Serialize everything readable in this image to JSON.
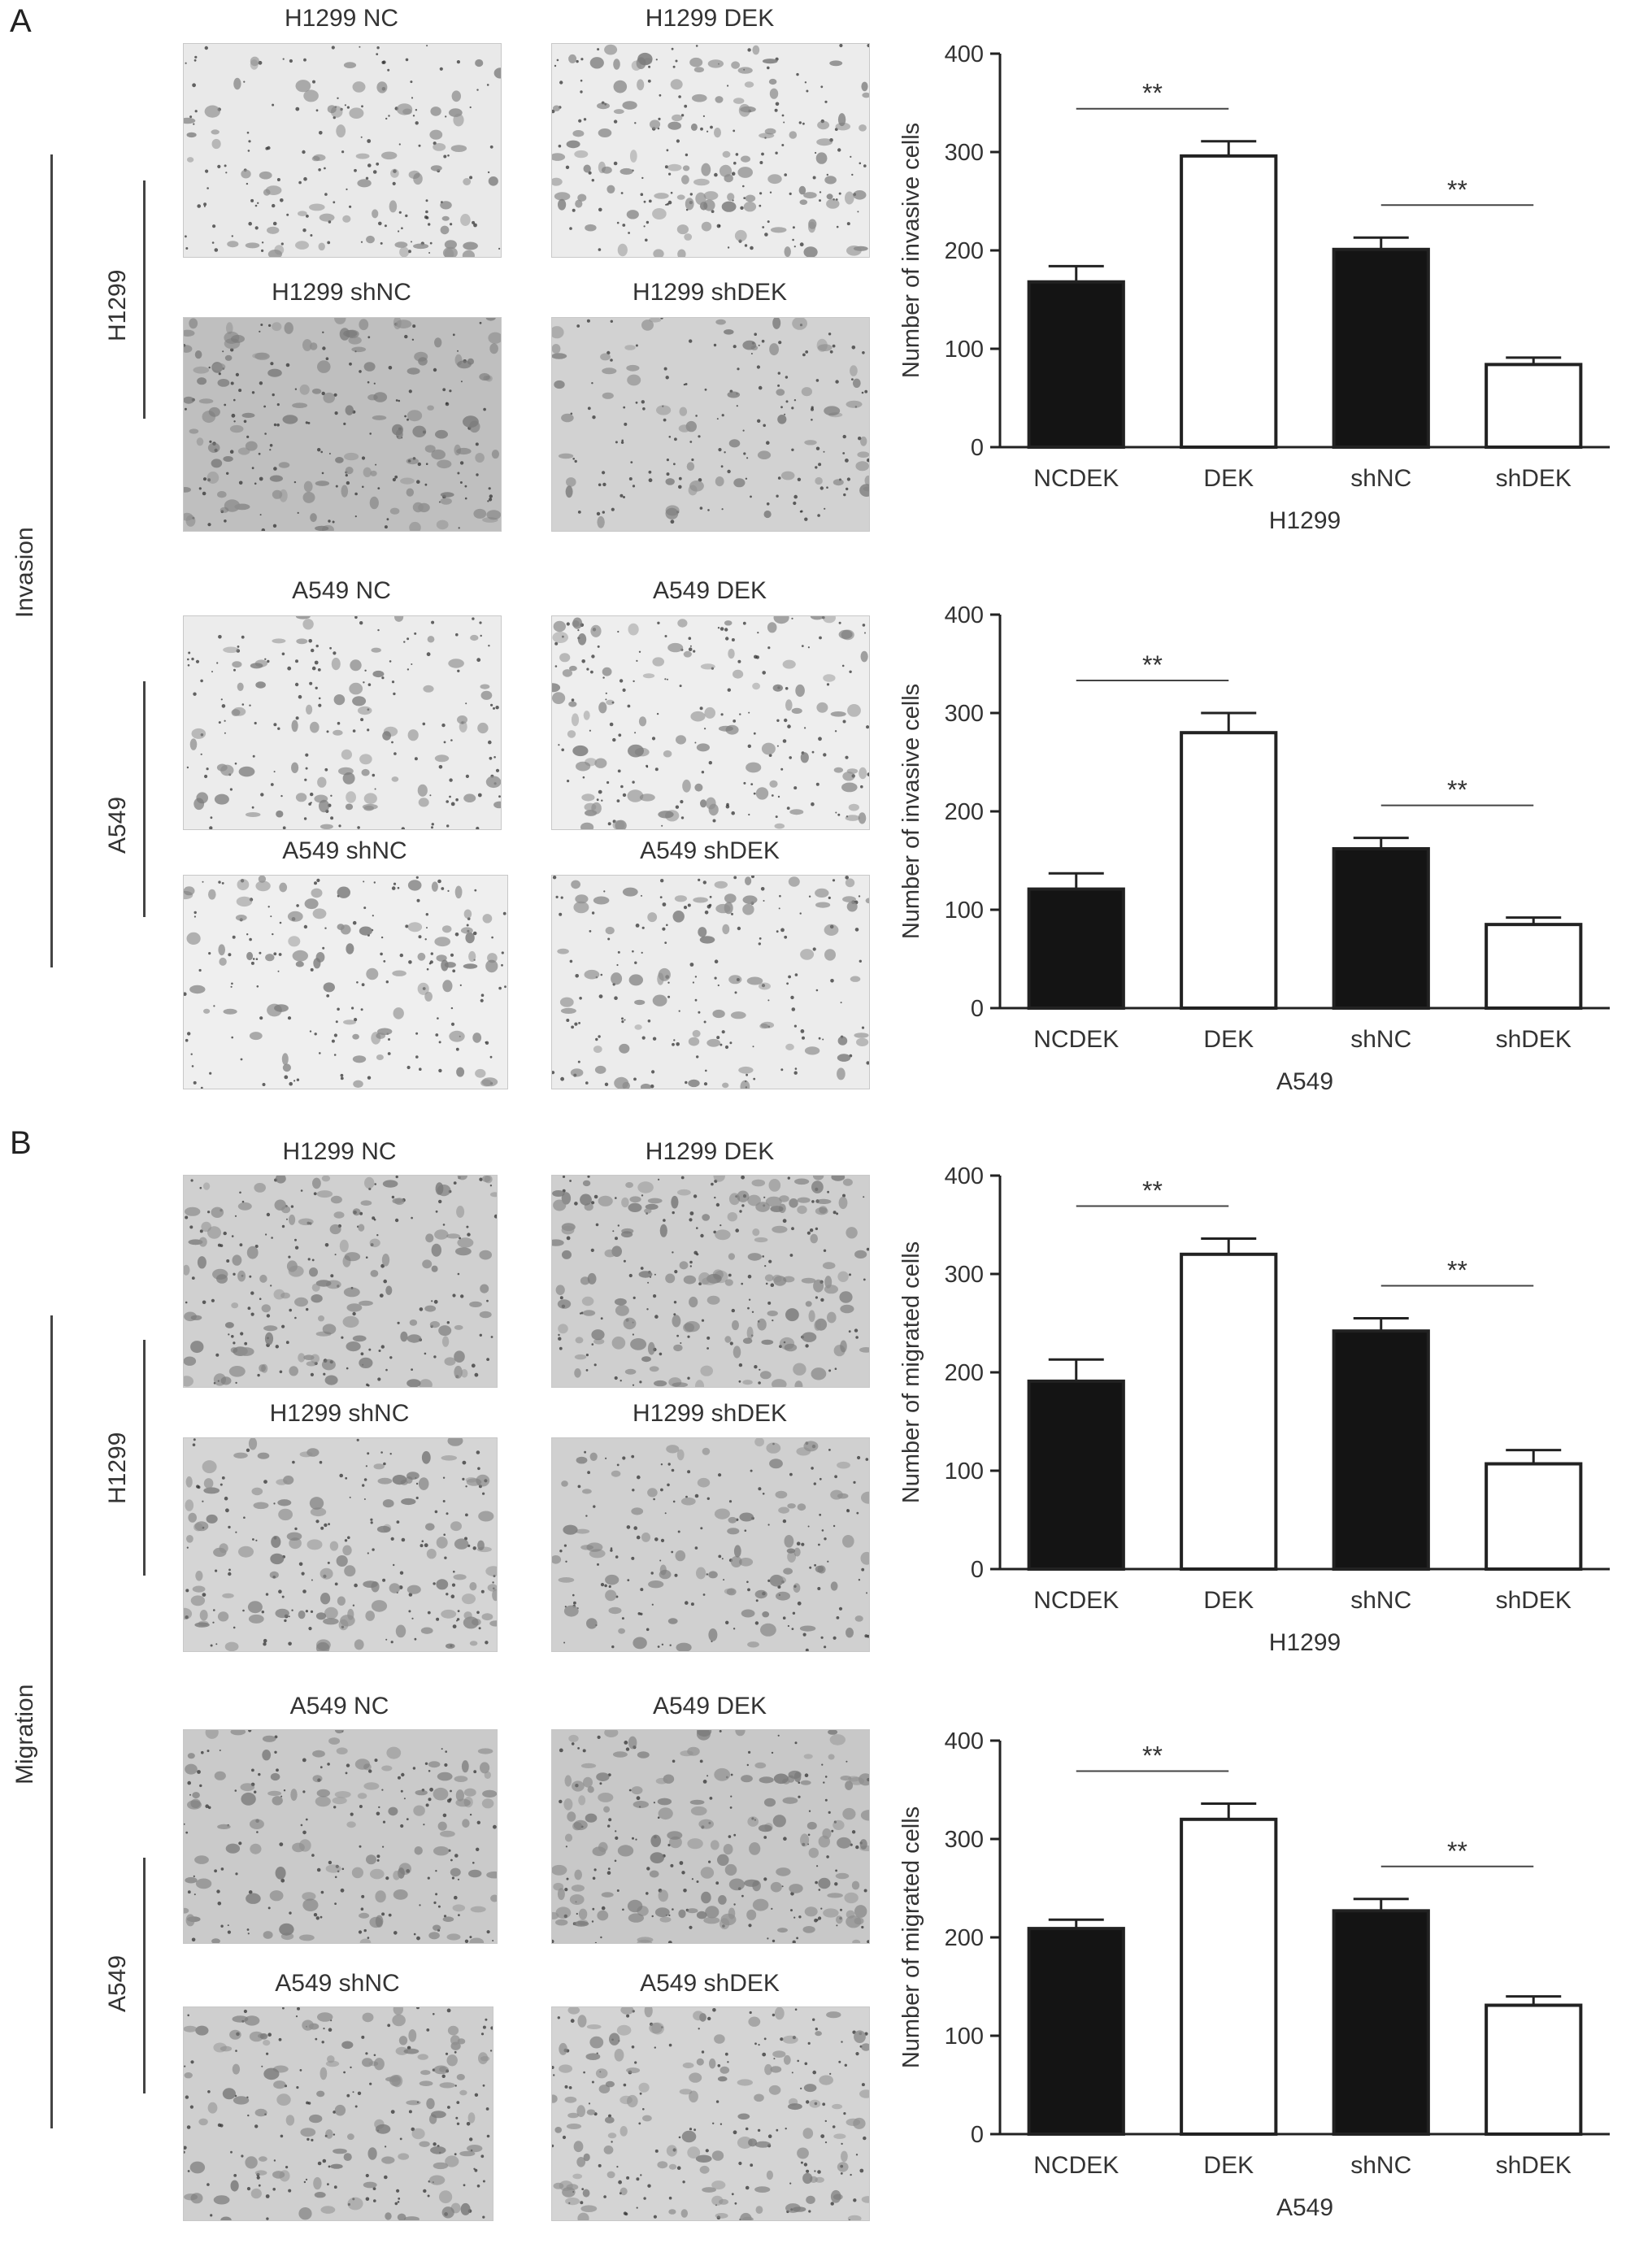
{
  "panels": {
    "A": {
      "letter": "A",
      "section_label": "Invasion",
      "groups": [
        {
          "cell_line": "H1299",
          "images": [
            "H1299 NC",
            "H1299 DEK",
            "H1299 shNC",
            "H1299 shDEK"
          ]
        },
        {
          "cell_line": "A549",
          "images": [
            "A549 NC",
            "A549 DEK",
            "A549 shNC",
            "A549 shDEK"
          ]
        }
      ]
    },
    "B": {
      "letter": "B",
      "section_label": "Migration",
      "groups": [
        {
          "cell_line": "H1299",
          "images": [
            "H1299 NC",
            "H1299 DEK",
            "H1299 shNC",
            "H1299 shDEK"
          ]
        },
        {
          "cell_line": "A549",
          "images": [
            "A549 NC",
            "A549 DEK",
            "A549 shNC",
            "A549 shDEK"
          ]
        }
      ]
    }
  },
  "colors": {
    "filled_bar": "#141414",
    "open_bar": "#ffffff",
    "axis": "#222222"
  },
  "chart_data": [
    {
      "type": "bar",
      "categories": [
        "NCDEK",
        "DEK",
        "shNC",
        "shDEK"
      ],
      "values": [
        168,
        296,
        201,
        84
      ],
      "errors": [
        16,
        15,
        12,
        7
      ],
      "bar_style": [
        "filled",
        "open",
        "filled",
        "open"
      ],
      "xlabel": "H1299",
      "ylabel": "Number of invasive cells",
      "ylim": [
        0,
        400
      ],
      "yticks": [
        0,
        100,
        200,
        300,
        400
      ],
      "significance": [
        {
          "pair": [
            0,
            1
          ],
          "label": "**"
        },
        {
          "pair": [
            2,
            3
          ],
          "label": "**"
        }
      ]
    },
    {
      "type": "bar",
      "categories": [
        "NCDEK",
        "DEK",
        "shNC",
        "shDEK"
      ],
      "values": [
        121,
        280,
        162,
        85
      ],
      "errors": [
        16,
        20,
        11,
        7
      ],
      "bar_style": [
        "filled",
        "open",
        "filled",
        "open"
      ],
      "xlabel": "A549",
      "ylabel": "Number of invasive cells",
      "ylim": [
        0,
        400
      ],
      "yticks": [
        0,
        100,
        200,
        300,
        400
      ],
      "significance": [
        {
          "pair": [
            0,
            1
          ],
          "label": "**"
        },
        {
          "pair": [
            2,
            3
          ],
          "label": "**"
        }
      ]
    },
    {
      "type": "bar",
      "categories": [
        "NCDEK",
        "DEK",
        "shNC",
        "shDEK"
      ],
      "values": [
        191,
        320,
        242,
        107
      ],
      "errors": [
        22,
        16,
        13,
        14
      ],
      "bar_style": [
        "filled",
        "open",
        "filled",
        "open"
      ],
      "xlabel": "H1299",
      "ylabel": "Number of migrated cells",
      "ylim": [
        0,
        400
      ],
      "yticks": [
        0,
        100,
        200,
        300,
        400
      ],
      "significance": [
        {
          "pair": [
            0,
            1
          ],
          "label": "**"
        },
        {
          "pair": [
            2,
            3
          ],
          "label": "**"
        }
      ]
    },
    {
      "type": "bar",
      "categories": [
        "NCDEK",
        "DEK",
        "shNC",
        "shDEK"
      ],
      "values": [
        209,
        320,
        227,
        131
      ],
      "errors": [
        9,
        16,
        12,
        9
      ],
      "bar_style": [
        "filled",
        "open",
        "filled",
        "open"
      ],
      "xlabel": "A549",
      "ylabel": "Number of migrated cells",
      "ylim": [
        0,
        400
      ],
      "yticks": [
        0,
        100,
        200,
        300,
        400
      ],
      "significance": [
        {
          "pair": [
            0,
            1
          ],
          "label": "**"
        },
        {
          "pair": [
            2,
            3
          ],
          "label": "**"
        }
      ]
    }
  ]
}
